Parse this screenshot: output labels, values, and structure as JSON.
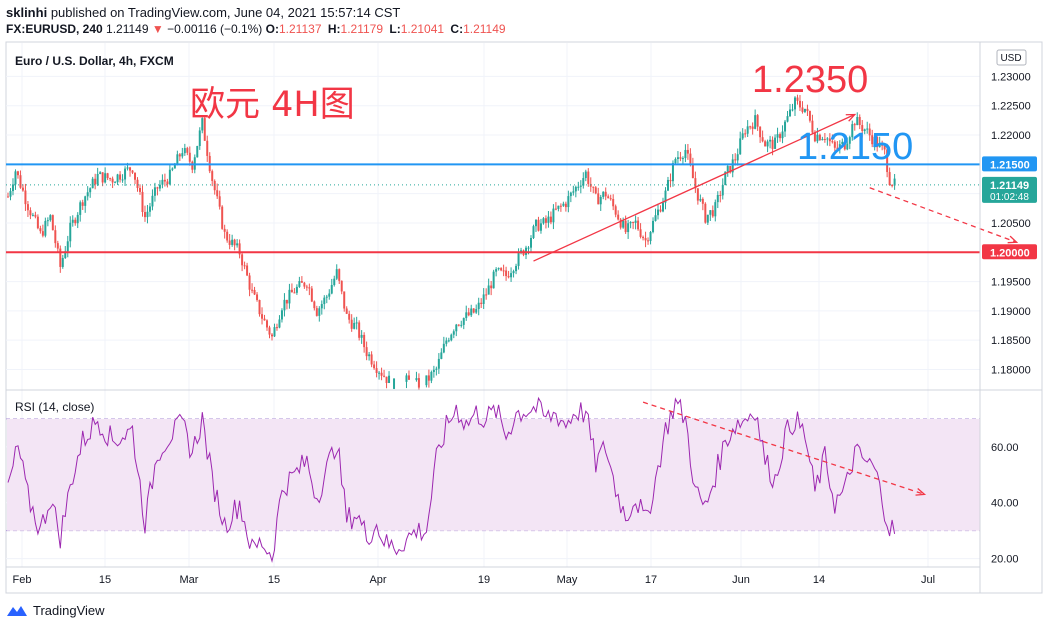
{
  "header": {
    "author": "sklinhi",
    "published_text": "published on TradingView.com, June 04, 2021 15:57:14 CST",
    "symbol": "FX:EURUSD, 240",
    "last": "1.21149",
    "change": "−0.00116 (−0.1%)",
    "open_label": "O:",
    "open": "1.21137",
    "high_label": "H:",
    "high": "1.21179",
    "low_label": "L:",
    "low": "1.21041",
    "close_label": "C:",
    "close": "1.21149"
  },
  "footer": {
    "brand": "TradingView",
    "logo_icon": "tradingview-logo-icon"
  },
  "annotations": {
    "cn_title": "欧元 4H图",
    "target_high": "1.2350",
    "level_mid": "1.2150"
  },
  "colors": {
    "up": "#26a69a",
    "down": "#ef5350",
    "blue_line": "#2196f3",
    "red_line": "#f23645",
    "rsi_line": "#9c27b0",
    "rsi_band": "#f3e5f5",
    "ink": "#131722"
  },
  "chart_data": [
    {
      "type": "candlestick",
      "title": "Euro / U.S. Dollar, 4h, FXCM",
      "currency_label": "USD",
      "x_ticks": [
        "Feb",
        "15",
        "Mar",
        "15",
        "Apr",
        "19",
        "May",
        "17",
        "Jun",
        "14",
        "Jul"
      ],
      "y_ticks": [
        "1.23000",
        "1.22500",
        "1.22000",
        "1.21500",
        "1.21000",
        "1.20500",
        "1.20000",
        "1.19500",
        "1.19000",
        "1.18500",
        "1.18000"
      ],
      "ylim": [
        1.1765,
        1.2357
      ],
      "grid": true,
      "close_path": [
        [
          0,
          1.2095
        ],
        [
          3,
          1.214
        ],
        [
          8,
          1.208
        ],
        [
          13,
          1.203
        ],
        [
          17,
          1.206
        ],
        [
          21,
          1.1975
        ],
        [
          25,
          1.204
        ],
        [
          30,
          1.209
        ],
        [
          36,
          1.213
        ],
        [
          42,
          1.2125
        ],
        [
          50,
          1.2145
        ],
        [
          55,
          1.206
        ],
        [
          60,
          1.211
        ],
        [
          65,
          1.213
        ],
        [
          70,
          1.2175
        ],
        [
          74,
          1.215
        ],
        [
          78,
          1.222
        ],
        [
          82,
          1.2125
        ],
        [
          87,
          1.203
        ],
        [
          93,
          1.2
        ],
        [
          98,
          1.193
        ],
        [
          102,
          1.189
        ],
        [
          106,
          1.1855
        ],
        [
          110,
          1.191
        ],
        [
          115,
          1.1935
        ],
        [
          120,
          1.195
        ],
        [
          124,
          1.19
        ],
        [
          128,
          1.1925
        ],
        [
          132,
          1.1965
        ],
        [
          136,
          1.189
        ],
        [
          140,
          1.187
        ],
        [
          144,
          1.183
        ],
        [
          148,
          1.1805
        ],
        [
          152,
          1.1785
        ],
        [
          156,
          1.177
        ],
        [
          160,
          1.178
        ],
        [
          164,
          1.1775
        ],
        [
          168,
          1.178
        ],
        [
          172,
          1.18
        ],
        [
          176,
          1.185
        ],
        [
          180,
          1.188
        ],
        [
          184,
          1.189
        ],
        [
          188,
          1.19
        ],
        [
          192,
          1.193
        ],
        [
          196,
          1.1965
        ],
        [
          200,
          1.196
        ],
        [
          204,
          1.1985
        ],
        [
          208,
          1.201
        ],
        [
          212,
          1.2045
        ],
        [
          216,
          1.205
        ],
        [
          220,
          1.207
        ],
        [
          224,
          1.2085
        ],
        [
          228,
          1.211
        ],
        [
          232,
          1.2135
        ],
        [
          236,
          1.209
        ],
        [
          240,
          1.21
        ],
        [
          244,
          1.207
        ],
        [
          248,
          1.2035
        ],
        [
          252,
          1.205
        ],
        [
          256,
          1.202
        ],
        [
          260,
          1.206
        ],
        [
          264,
          1.21
        ],
        [
          268,
          1.216
        ],
        [
          272,
          1.2175
        ],
        [
          276,
          1.211
        ],
        [
          280,
          1.206
        ],
        [
          284,
          1.2075
        ],
        [
          288,
          1.213
        ],
        [
          292,
          1.216
        ],
        [
          296,
          1.221
        ],
        [
          300,
          1.2225
        ],
        [
          304,
          1.2185
        ],
        [
          308,
          1.2185
        ],
        [
          312,
          1.222
        ],
        [
          316,
          1.2255
        ],
        [
          320,
          1.2245
        ],
        [
          324,
          1.22
        ],
        [
          328,
          1.22
        ],
        [
          332,
          1.2175
        ],
        [
          336,
          1.2185
        ],
        [
          340,
          1.2225
        ],
        [
          344,
          1.221
        ],
        [
          348,
          1.219
        ],
        [
          352,
          1.217
        ],
        [
          354,
          1.2125
        ],
        [
          356,
          1.2115
        ]
      ],
      "price_labels": [
        {
          "value": 1.215,
          "text": "1.21500",
          "color": "#2196f3"
        },
        {
          "value": 1.2115,
          "text": "1.21149",
          "sub": "01:02:48",
          "color": "#26a69a"
        },
        {
          "value": 1.2,
          "text": "1.20000",
          "color": "#f23645"
        }
      ],
      "hlines": [
        {
          "value": 1.215,
          "color": "#2196f3"
        },
        {
          "value": 1.2,
          "color": "#f23645"
        }
      ],
      "trendlines": [
        {
          "from": [
            211,
            1.1985
          ],
          "to": [
            340,
            1.2235
          ],
          "color": "#f23645",
          "style": "solid",
          "arrow": true
        },
        {
          "from": [
            346,
            1.211
          ],
          "to": [
            405,
            1.2017
          ],
          "color": "#f23645",
          "style": "dashed",
          "arrow": true
        }
      ]
    },
    {
      "type": "line",
      "title": "RSI (14, close)",
      "y_ticks": [
        "60.00",
        "40.00",
        "20.00"
      ],
      "ylim": [
        17,
        80
      ],
      "band": [
        30,
        70
      ],
      "series": [
        {
          "values_path": [
            [
              0,
              45
            ],
            [
              4,
              60
            ],
            [
              8,
              42
            ],
            [
              13,
              30
            ],
            [
              17,
              42
            ],
            [
              21,
              28
            ],
            [
              26,
              50
            ],
            [
              30,
              62
            ],
            [
              36,
              70
            ],
            [
              42,
              62
            ],
            [
              50,
              66
            ],
            [
              55,
              33
            ],
            [
              60,
              58
            ],
            [
              65,
              64
            ],
            [
              70,
              68
            ],
            [
              74,
              58
            ],
            [
              78,
              70
            ],
            [
              82,
              48
            ],
            [
              87,
              32
            ],
            [
              93,
              40
            ],
            [
              98,
              23
            ],
            [
              102,
              26
            ],
            [
              106,
              21
            ],
            [
              110,
              45
            ],
            [
              115,
              50
            ],
            [
              120,
              55
            ],
            [
              124,
              42
            ],
            [
              128,
              52
            ],
            [
              132,
              62
            ],
            [
              136,
              34
            ],
            [
              140,
              36
            ],
            [
              144,
              28
            ],
            [
              148,
              32
            ],
            [
              152,
              25
            ],
            [
              156,
              24
            ],
            [
              160,
              27
            ],
            [
              164,
              30
            ],
            [
              168,
              30
            ],
            [
              172,
              55
            ],
            [
              176,
              67
            ],
            [
              180,
              74
            ],
            [
              184,
              68
            ],
            [
              188,
              72
            ],
            [
              192,
              70
            ],
            [
              196,
              73
            ],
            [
              200,
              64
            ],
            [
              204,
              72
            ],
            [
              208,
              73
            ],
            [
              212,
              74
            ],
            [
              216,
              70
            ],
            [
              220,
              72
            ],
            [
              224,
              68
            ],
            [
              228,
              73
            ],
            [
              232,
              72
            ],
            [
              236,
              54
            ],
            [
              240,
              60
            ],
            [
              244,
              45
            ],
            [
              248,
              35
            ],
            [
              252,
              42
            ],
            [
              256,
              33
            ],
            [
              260,
              48
            ],
            [
              264,
              66
            ],
            [
              268,
              76
            ],
            [
              272,
              70
            ],
            [
              276,
              44
            ],
            [
              280,
              38
            ],
            [
              284,
              50
            ],
            [
              288,
              62
            ],
            [
              292,
              68
            ],
            [
              296,
              70
            ],
            [
              300,
              74
            ],
            [
              304,
              55
            ],
            [
              308,
              48
            ],
            [
              312,
              64
            ],
            [
              316,
              70
            ],
            [
              320,
              64
            ],
            [
              324,
              44
            ],
            [
              328,
              56
            ],
            [
              332,
              40
            ],
            [
              336,
              44
            ],
            [
              340,
              58
            ],
            [
              344,
              55
            ],
            [
              348,
              52
            ],
            [
              352,
              38
            ],
            [
              354,
              31
            ],
            [
              356,
              30
            ]
          ]
        }
      ],
      "trendlines": [
        {
          "from": [
            255,
            76
          ],
          "to": [
            368,
            43
          ],
          "color": "#f23645",
          "style": "dashed",
          "arrow": true
        }
      ]
    }
  ]
}
